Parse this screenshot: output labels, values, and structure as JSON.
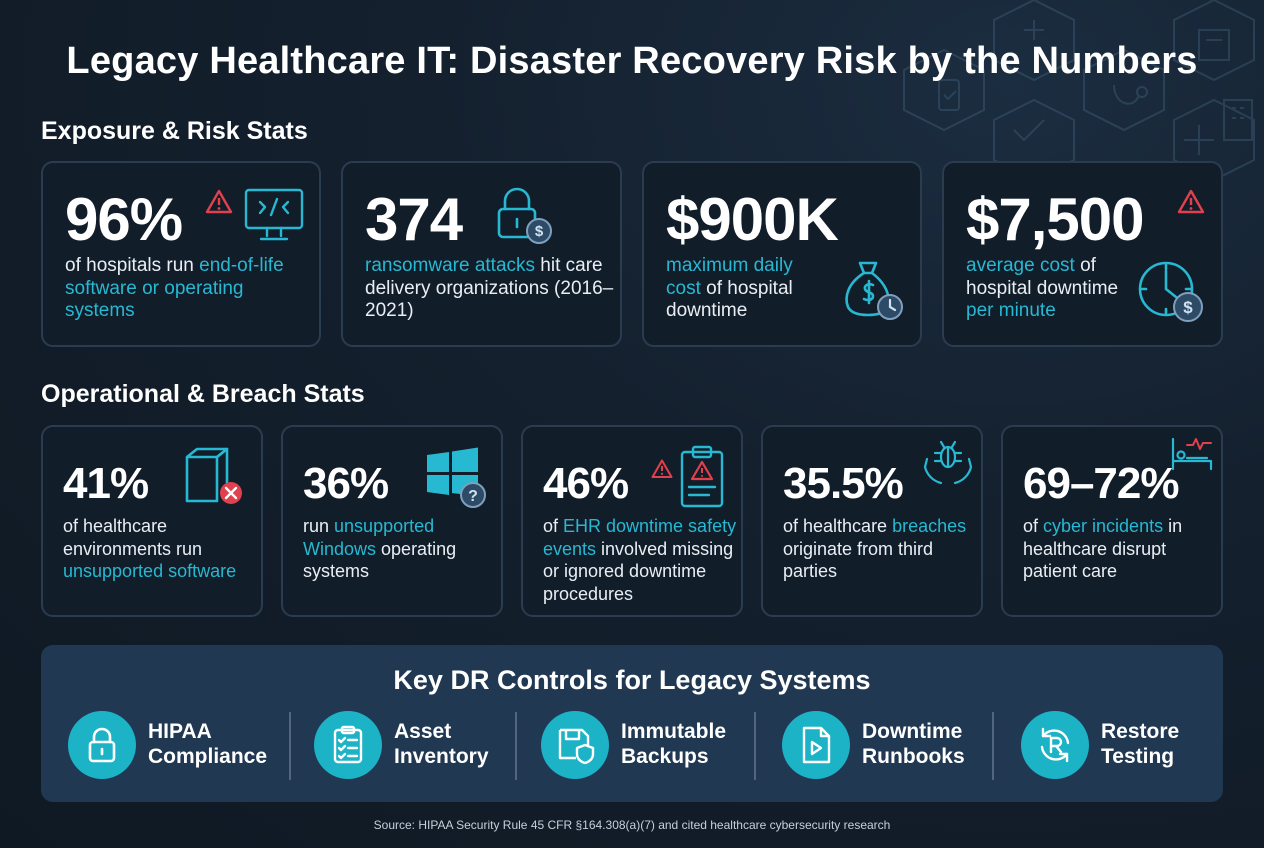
{
  "title": "Legacy Healthcare IT: Disaster Recovery Risk by the Numbers",
  "sections": {
    "exposure": "Exposure & Risk Stats",
    "operational": "Operational & Breach Stats"
  },
  "exposure_cards": [
    {
      "value": "96%",
      "pre": "of hospitals run ",
      "highlight": "end-of-life software or operating systems",
      "post": "",
      "icon": "monitor-code-icon"
    },
    {
      "value": "374",
      "pre": "",
      "highlight": "ransomware attacks",
      "post": " hit care delivery organizations (2016–2021)",
      "icon": "padlock-dollar-icon"
    },
    {
      "value": "$900K",
      "pre": "",
      "highlight": "maximum daily cost",
      "post": " of hospital downtime",
      "icon": "money-bag-clock-icon"
    },
    {
      "value": "$7,500",
      "pre": "",
      "highlight": "average cost",
      "post": " of hospital downtime ",
      "highlight2": "per minute",
      "icon": "clock-dollar-icon"
    }
  ],
  "operational_cards": [
    {
      "value": "41%",
      "pre": "of healthcare environments run ",
      "highlight": "unsupported software",
      "post": "",
      "icon": "box-error-icon"
    },
    {
      "value": "36%",
      "pre": "run ",
      "highlight": "unsupported Windows",
      "post": " operating systems",
      "icon": "windows-question-icon"
    },
    {
      "value": "46%",
      "pre": "of ",
      "highlight": "EHR downtime safety events",
      "post": " involved missing or ignored downtime procedures",
      "icon": "clipboard-warning-icon"
    },
    {
      "value": "35.5%",
      "pre": "of healthcare ",
      "highlight": "breaches",
      "post": " originate from third parties",
      "icon": "bug-hands-icon"
    },
    {
      "value": "69–72%",
      "pre": "of ",
      "highlight": "cyber incidents",
      "post": " in healthcare disrupt patient care",
      "icon": "hospital-bed-pulse-icon"
    }
  ],
  "controls": {
    "title": "Key DR Controls for Legacy Systems",
    "items": [
      {
        "line1": "HIPAA",
        "line2": "Compliance",
        "icon": "lock-icon"
      },
      {
        "line1": "Asset",
        "line2": "Inventory",
        "icon": "checklist-icon"
      },
      {
        "line1": "Immutable",
        "line2": "Backups",
        "icon": "floppy-shield-icon"
      },
      {
        "line1": "Downtime",
        "line2": "Runbooks",
        "icon": "play-document-icon"
      },
      {
        "line1": "Restore",
        "line2": "Testing",
        "icon": "restore-cycle-icon"
      }
    ]
  },
  "source": "Source: HIPAA Security Rule 45 CFR §164.308(a)(7) and cited healthcare cybersecurity research",
  "colors": {
    "background": "#111c27",
    "card_border": "#2b3c50",
    "highlight": "#27b8d2",
    "warning": "#e0414d",
    "panel": "#213852",
    "control_circle": "#1cb3c7"
  }
}
